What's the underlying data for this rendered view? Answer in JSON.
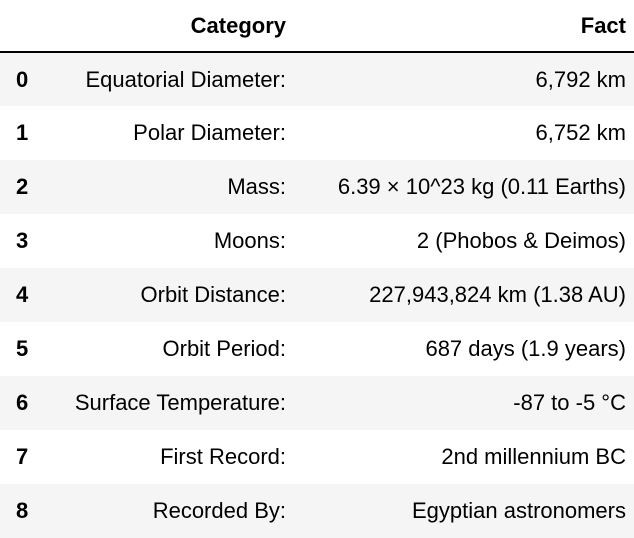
{
  "table": {
    "columns": [
      "",
      "Category",
      "Fact"
    ],
    "rows": [
      {
        "index": "0",
        "category": "Equatorial Diameter:",
        "fact": "6,792 km"
      },
      {
        "index": "1",
        "category": "Polar Diameter:",
        "fact": "6,752 km"
      },
      {
        "index": "2",
        "category": "Mass:",
        "fact": "6.39 × 10^23 kg (0.11 Earths)"
      },
      {
        "index": "3",
        "category": "Moons:",
        "fact": "2 (Phobos & Deimos)"
      },
      {
        "index": "4",
        "category": "Orbit Distance:",
        "fact": "227,943,824 km (1.38 AU)"
      },
      {
        "index": "5",
        "category": "Orbit Period:",
        "fact": "687 days (1.9 years)"
      },
      {
        "index": "6",
        "category": "Surface Temperature:",
        "fact": "-87 to -5 °C"
      },
      {
        "index": "7",
        "category": "First Record:",
        "fact": "2nd millennium BC"
      },
      {
        "index": "8",
        "category": "Recorded By:",
        "fact": "Egyptian astronomers"
      }
    ]
  },
  "colors": {
    "striped_row": "#f5f5f5",
    "header_rule": "#000000"
  }
}
